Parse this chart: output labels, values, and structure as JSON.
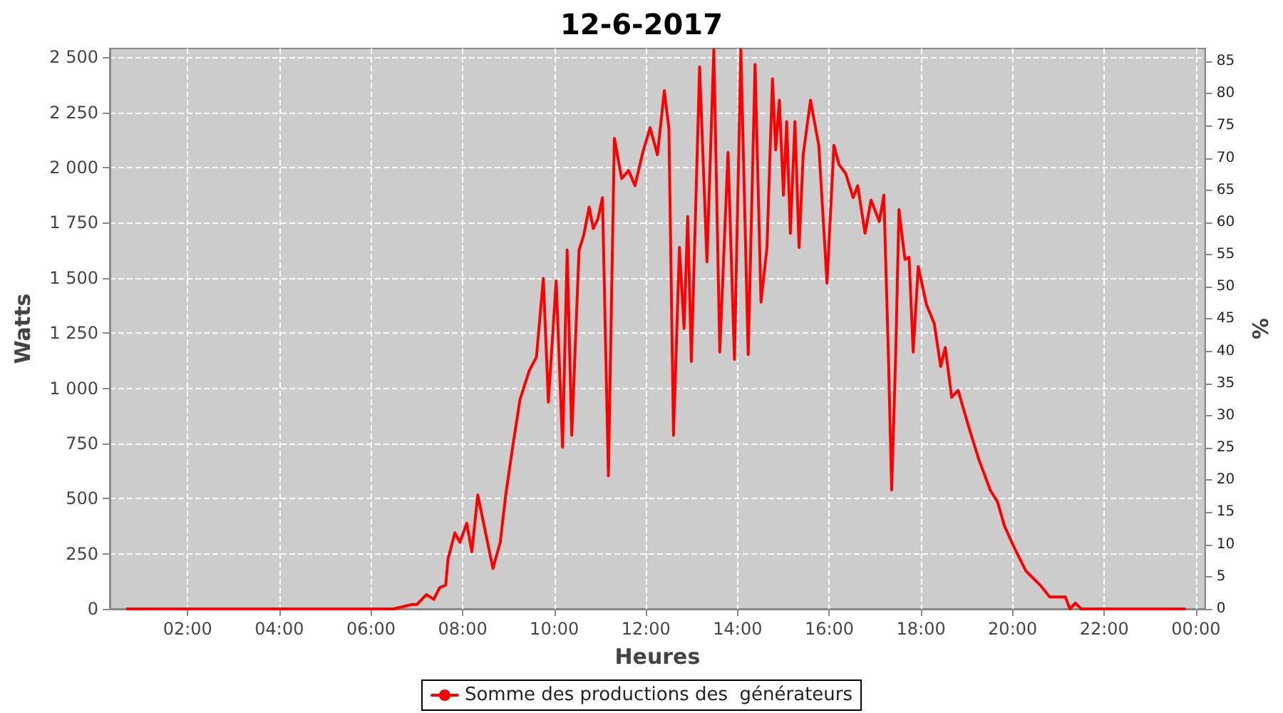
{
  "chart_data": {
    "type": "line",
    "title": "12-6-2017",
    "xlabel": "Heures",
    "ylabel": "Watts",
    "y2label": "%",
    "x": [
      0.68,
      6.49,
      6.9,
      7.0,
      7.21,
      7.37,
      7.5,
      7.63,
      7.68,
      7.83,
      7.94,
      8.09,
      8.2,
      8.33,
      8.5,
      8.66,
      8.82,
      8.94,
      9.09,
      9.25,
      9.45,
      9.61,
      9.76,
      9.87,
      10.04,
      10.18,
      10.28,
      10.38,
      10.54,
      10.64,
      10.76,
      10.85,
      10.95,
      11.05,
      11.18,
      11.31,
      11.47,
      11.62,
      11.76,
      11.93,
      12.09,
      12.25,
      12.4,
      12.5,
      12.6,
      12.73,
      12.83,
      12.91,
      12.99,
      13.17,
      13.33,
      13.48,
      13.61,
      13.79,
      13.93,
      14.07,
      14.23,
      14.38,
      14.51,
      14.64,
      14.76,
      14.83,
      14.91,
      15.0,
      15.07,
      15.15,
      15.25,
      15.34,
      15.43,
      15.59,
      15.77,
      15.95,
      16.1,
      16.21,
      16.36,
      16.52,
      16.62,
      16.78,
      16.91,
      17.09,
      17.19,
      17.29,
      17.36,
      17.45,
      17.52,
      17.65,
      17.74,
      17.83,
      17.94,
      18.12,
      18.29,
      18.43,
      18.53,
      18.67,
      18.81,
      19.05,
      19.26,
      19.51,
      19.67,
      19.82,
      20.03,
      20.29,
      20.6,
      20.81,
      21.15,
      21.25,
      21.37,
      21.5,
      23.75
    ],
    "series": [
      {
        "name": "Somme des productions des  générateurs",
        "color": "#ff0000",
        "values": [
          0,
          0,
          20,
          20,
          65,
          43,
          97,
          108,
          226,
          345,
          302,
          388,
          259,
          517,
          345,
          183,
          302,
          517,
          733,
          948,
          1078,
          1142,
          1498,
          937,
          1487,
          733,
          1627,
          787,
          1627,
          1692,
          1821,
          1724,
          1767,
          1864,
          603,
          2133,
          1950,
          1987,
          1918,
          2069,
          2181,
          2058,
          2349,
          2177,
          787,
          1638,
          1271,
          1778,
          1121,
          2457,
          1573,
          2535,
          1164,
          2069,
          1131,
          2535,
          1153,
          2467,
          1390,
          1638,
          2403,
          2080,
          2306,
          1875,
          2209,
          1702,
          2209,
          1638,
          2058,
          2306,
          2101,
          1476,
          2101,
          2015,
          1972,
          1864,
          1918,
          1702,
          1853,
          1756,
          1875,
          1142,
          539,
          1164,
          1810,
          1584,
          1594,
          1164,
          1552,
          1379,
          1293,
          1099,
          1185,
          959,
          991,
          819,
          679,
          539,
          485,
          377,
          280,
          172,
          108,
          54,
          54,
          0,
          26,
          0,
          0
        ]
      }
    ],
    "xlim": [
      0.3,
      24.2
    ],
    "xticks": [
      {
        "value": 2,
        "label": "02:00"
      },
      {
        "value": 4,
        "label": "04:00"
      },
      {
        "value": 6,
        "label": "06:00"
      },
      {
        "value": 8,
        "label": "08:00"
      },
      {
        "value": 10,
        "label": "10:00"
      },
      {
        "value": 12,
        "label": "12:00"
      },
      {
        "value": 14,
        "label": "14:00"
      },
      {
        "value": 16,
        "label": "16:00"
      },
      {
        "value": 18,
        "label": "18:00"
      },
      {
        "value": 20,
        "label": "20:00"
      },
      {
        "value": 22,
        "label": "22:00"
      },
      {
        "value": 24,
        "label": "00:00"
      }
    ],
    "ylim": [
      0,
      2540
    ],
    "yticks": [
      0,
      250,
      500,
      750,
      {
        "value": 1000,
        "label": "1 000"
      },
      {
        "value": 1250,
        "label": "1 250"
      },
      {
        "value": 1500,
        "label": "1 500"
      },
      {
        "value": 1750,
        "label": "1 750"
      },
      {
        "value": 2000,
        "label": "2 000"
      },
      {
        "value": 2250,
        "label": "2 250"
      },
      {
        "value": 2500,
        "label": "2 500"
      }
    ],
    "y2lim": [
      0,
      87
    ],
    "y2ticks": [
      0,
      5,
      10,
      15,
      20,
      25,
      30,
      35,
      40,
      45,
      50,
      55,
      60,
      65,
      70,
      75,
      80,
      85
    ],
    "grid": true,
    "legend": "bottom",
    "line_style": "solid"
  }
}
